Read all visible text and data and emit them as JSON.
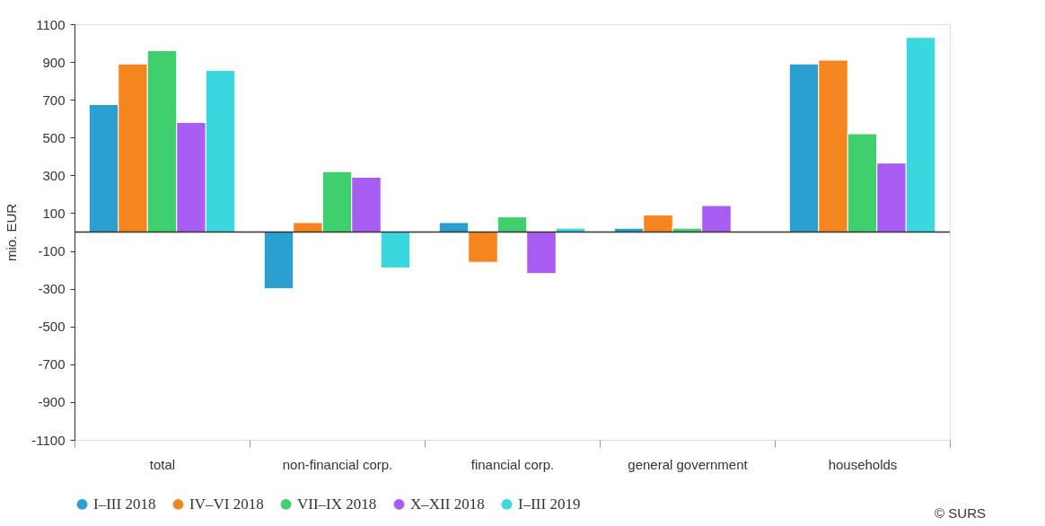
{
  "chart_data": {
    "type": "bar",
    "ylabel": "mio. EUR",
    "categories": [
      "total",
      "non-financial corp.",
      "financial corp.",
      "general government",
      "households"
    ],
    "series": [
      {
        "name": "I–III 2018",
        "color": "#2a9fd0",
        "values": [
          675,
          -300,
          50,
          20,
          890
        ]
      },
      {
        "name": "IV–VI 2018",
        "color": "#f5861f",
        "values": [
          890,
          50,
          -160,
          90,
          910
        ]
      },
      {
        "name": "VII–IX 2018",
        "color": "#3fcf6c",
        "values": [
          960,
          320,
          80,
          20,
          520
        ]
      },
      {
        "name": "X–XII 2018",
        "color": "#a95cf2",
        "values": [
          580,
          290,
          -220,
          140,
          365
        ]
      },
      {
        "name": "I–III 2019",
        "color": "#3ad8de",
        "values": [
          855,
          -190,
          20,
          null,
          1030
        ]
      }
    ],
    "ylim": [
      -1100,
      1100
    ],
    "yticks": [
      -1100,
      -900,
      -700,
      -500,
      -300,
      -100,
      100,
      300,
      500,
      700,
      900,
      1100
    ],
    "ref_lines": [
      {
        "axis": "y",
        "value": 0,
        "color": "#333333"
      }
    ],
    "grid": false,
    "legend": "bottom",
    "annotations": [
      "© SURS"
    ]
  }
}
